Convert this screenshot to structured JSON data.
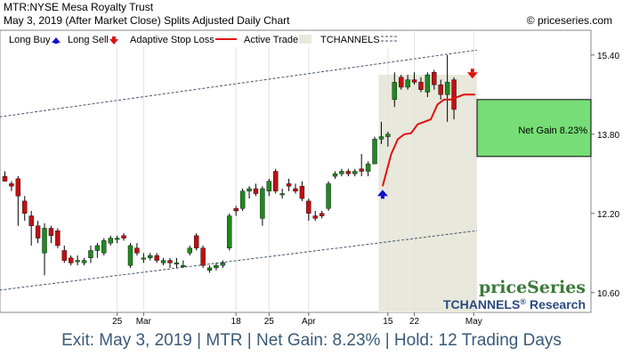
{
  "header": {
    "title": "MTR:NYSE Mesa Royalty Trust",
    "subtitle": "May 3, 2019 (After Market Close)  Splits Adjusted Daily Chart",
    "copyright": "© priceseries.com"
  },
  "legend": {
    "long_buy": "Long Buy",
    "long_sell": "Long Sell",
    "adaptive_stop": "Adaptive Stop Loss",
    "active_trade": "Active Trade",
    "tchannels": "TCHANNELS"
  },
  "brand": {
    "name": "priceSeries",
    "research": "TCHANNELS",
    "reg": "®",
    "research_suffix": "Research"
  },
  "net_gain_label": "Net Gain 8.23%",
  "footer": "Exit: May 3, 2019 | MTR | Net Gain: 8.23% | Hold: 12 Trading Days",
  "colors": {
    "up": "#1e8a1e",
    "down": "#c01010",
    "stop": "#e01010",
    "trade_zone": "#e8e8dc",
    "gain_box": "#77dd77",
    "channel": "#44556a",
    "footer_text": "#3a5a78",
    "brand_green": "#3a7a3a",
    "brand_blue": "#2a4a80",
    "buy_arrow": "#1010d0",
    "sell_arrow": "#e01010"
  },
  "chart_data": {
    "type": "candlestick",
    "yticks": [
      10.6,
      12.2,
      13.8,
      15.4
    ],
    "ylim": [
      10.2,
      15.9
    ],
    "xticks": [
      {
        "i": 17,
        "label": "25"
      },
      {
        "i": 21,
        "label": "Mar"
      },
      {
        "i": 35,
        "label": "18"
      },
      {
        "i": 40,
        "label": "25"
      },
      {
        "i": 46,
        "label": "Apr"
      },
      {
        "i": 58,
        "label": "15"
      },
      {
        "i": 62,
        "label": "22"
      },
      {
        "i": 71,
        "label": "May"
      }
    ],
    "candles": [
      [
        12.95,
        13.05,
        12.85,
        12.85
      ],
      [
        12.8,
        12.85,
        12.65,
        12.75
      ],
      [
        12.9,
        12.95,
        11.95,
        12.55
      ],
      [
        12.45,
        12.55,
        12.05,
        12.2
      ],
      [
        12.15,
        12.25,
        11.55,
        11.95
      ],
      [
        11.95,
        12.05,
        11.6,
        11.7
      ],
      [
        11.4,
        12.0,
        10.95,
        11.9
      ],
      [
        11.9,
        11.95,
        11.6,
        11.75
      ],
      [
        11.85,
        11.9,
        11.5,
        11.55
      ],
      [
        11.45,
        11.55,
        11.2,
        11.25
      ],
      [
        11.3,
        11.35,
        11.15,
        11.2
      ],
      [
        11.25,
        11.35,
        11.15,
        11.25
      ],
      [
        11.2,
        11.3,
        11.15,
        11.25
      ],
      [
        11.3,
        11.55,
        11.2,
        11.45
      ],
      [
        11.45,
        11.6,
        11.3,
        11.55
      ],
      [
        11.4,
        11.7,
        11.35,
        11.65
      ],
      [
        11.6,
        11.75,
        11.55,
        11.7
      ],
      [
        11.7,
        11.75,
        11.6,
        11.7
      ],
      [
        11.75,
        11.8,
        11.65,
        11.7
      ],
      [
        11.15,
        11.6,
        11.1,
        11.55
      ],
      [
        11.5,
        11.6,
        11.35,
        11.4
      ],
      [
        11.3,
        11.4,
        11.2,
        11.3
      ],
      [
        11.3,
        11.4,
        11.25,
        11.35
      ],
      [
        11.35,
        11.4,
        11.2,
        11.25
      ],
      [
        11.2,
        11.3,
        11.15,
        11.25
      ],
      [
        11.25,
        11.3,
        11.1,
        11.2
      ],
      [
        11.2,
        11.3,
        11.1,
        11.2
      ],
      [
        11.15,
        11.25,
        11.1,
        11.15
      ],
      [
        11.4,
        11.55,
        11.35,
        11.5
      ],
      [
        11.75,
        11.8,
        11.45,
        11.5
      ],
      [
        11.5,
        11.55,
        11.1,
        11.15
      ],
      [
        11.05,
        11.15,
        11.0,
        11.1
      ],
      [
        11.1,
        11.2,
        11.05,
        11.15
      ],
      [
        11.15,
        11.25,
        11.1,
        11.2
      ],
      [
        11.5,
        12.2,
        11.45,
        12.15
      ],
      [
        12.3,
        12.35,
        12.15,
        12.25
      ],
      [
        12.3,
        12.7,
        12.25,
        12.65
      ],
      [
        12.65,
        12.75,
        12.5,
        12.7
      ],
      [
        12.7,
        12.8,
        12.55,
        12.6
      ],
      [
        12.1,
        12.75,
        11.95,
        12.7
      ],
      [
        12.65,
        12.9,
        12.55,
        12.85
      ],
      [
        13.05,
        13.1,
        12.6,
        12.65
      ],
      [
        12.6,
        12.7,
        12.5,
        12.6
      ],
      [
        12.8,
        12.9,
        12.65,
        12.75
      ],
      [
        12.7,
        12.8,
        12.6,
        12.65
      ],
      [
        12.75,
        12.85,
        12.45,
        12.5
      ],
      [
        12.45,
        12.5,
        12.05,
        12.2
      ],
      [
        12.15,
        12.25,
        12.05,
        12.1
      ],
      [
        12.2,
        12.25,
        12.1,
        12.15
      ],
      [
        12.3,
        12.85,
        12.25,
        12.8
      ],
      [
        12.95,
        13.05,
        12.9,
        13.0
      ],
      [
        13.0,
        13.1,
        12.95,
        13.05
      ],
      [
        13.05,
        13.1,
        12.95,
        13.0
      ],
      [
        13.0,
        13.1,
        12.95,
        13.05
      ],
      [
        13.1,
        13.4,
        12.95,
        13.05
      ],
      [
        13.05,
        13.25,
        12.95,
        13.2
      ],
      [
        13.2,
        13.75,
        13.2,
        13.7
      ],
      [
        13.7,
        14.05,
        13.6,
        13.75
      ],
      [
        13.75,
        13.85,
        13.55,
        13.8
      ],
      [
        14.5,
        15.05,
        14.35,
        14.85
      ],
      [
        14.95,
        15.0,
        14.7,
        14.75
      ],
      [
        14.75,
        15.0,
        14.7,
        14.9
      ],
      [
        14.9,
        15.05,
        14.8,
        14.85
      ],
      [
        14.85,
        14.95,
        14.65,
        14.7
      ],
      [
        14.65,
        15.05,
        14.55,
        15.0
      ],
      [
        15.05,
        15.1,
        14.7,
        14.8
      ],
      [
        14.8,
        14.9,
        14.5,
        14.6
      ],
      [
        14.6,
        15.4,
        14.05,
        14.85
      ],
      [
        14.9,
        14.95,
        14.1,
        14.3
      ]
    ],
    "candle_start_index": 0,
    "adaptive_stop": [
      [
        57.2,
        12.75
      ],
      [
        58.5,
        13.4
      ],
      [
        59.5,
        13.7
      ],
      [
        60.5,
        13.8
      ],
      [
        61.5,
        13.82
      ],
      [
        62.5,
        14.0
      ],
      [
        63.5,
        14.05
      ],
      [
        64.5,
        14.1
      ],
      [
        65.5,
        14.4
      ],
      [
        66.5,
        14.5
      ],
      [
        67.5,
        14.5
      ],
      [
        68.5,
        14.55
      ],
      [
        69.5,
        14.6
      ],
      [
        70.5,
        14.6
      ],
      [
        71.2,
        14.6
      ]
    ],
    "trade_zone": [
      57.0,
      71.5
    ],
    "long_buy": {
      "i": 57.2,
      "y": 12.55
    },
    "long_sell": {
      "i": 70.8,
      "y": 15.05
    },
    "gain_box": {
      "top": 14.5,
      "bottom": 13.35
    },
    "channel_upper": [
      [
        0,
        14.15
      ],
      [
        71.5,
        15.5
      ]
    ],
    "channel_lower": [
      [
        0,
        10.65
      ],
      [
        71.5,
        11.85
      ]
    ]
  }
}
